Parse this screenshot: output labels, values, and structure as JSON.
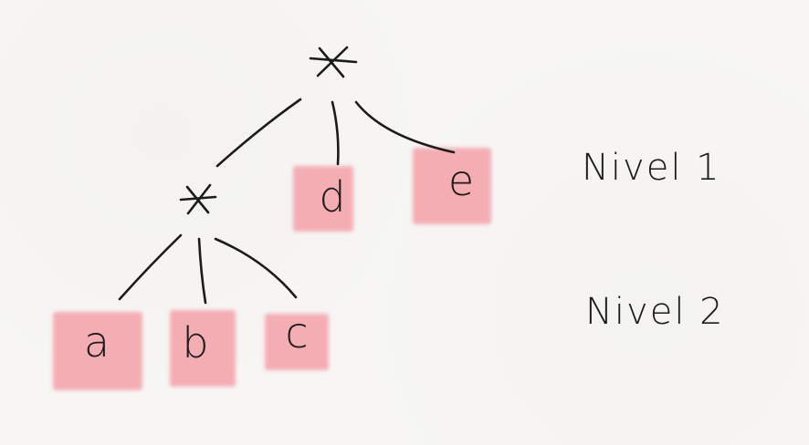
{
  "diagram": {
    "root": {
      "label": "*"
    },
    "inner": {
      "label": "*"
    },
    "leaves": {
      "a": "a",
      "b": "b",
      "c": "c",
      "d": "d",
      "e": "e"
    },
    "levels": {
      "level1": "Nivel 1",
      "level2": "Nivel 2"
    },
    "colors": {
      "leaf_fill": "#f4a6ad",
      "ink": "#1b1b1b",
      "paper": "#f7f6f4"
    }
  }
}
